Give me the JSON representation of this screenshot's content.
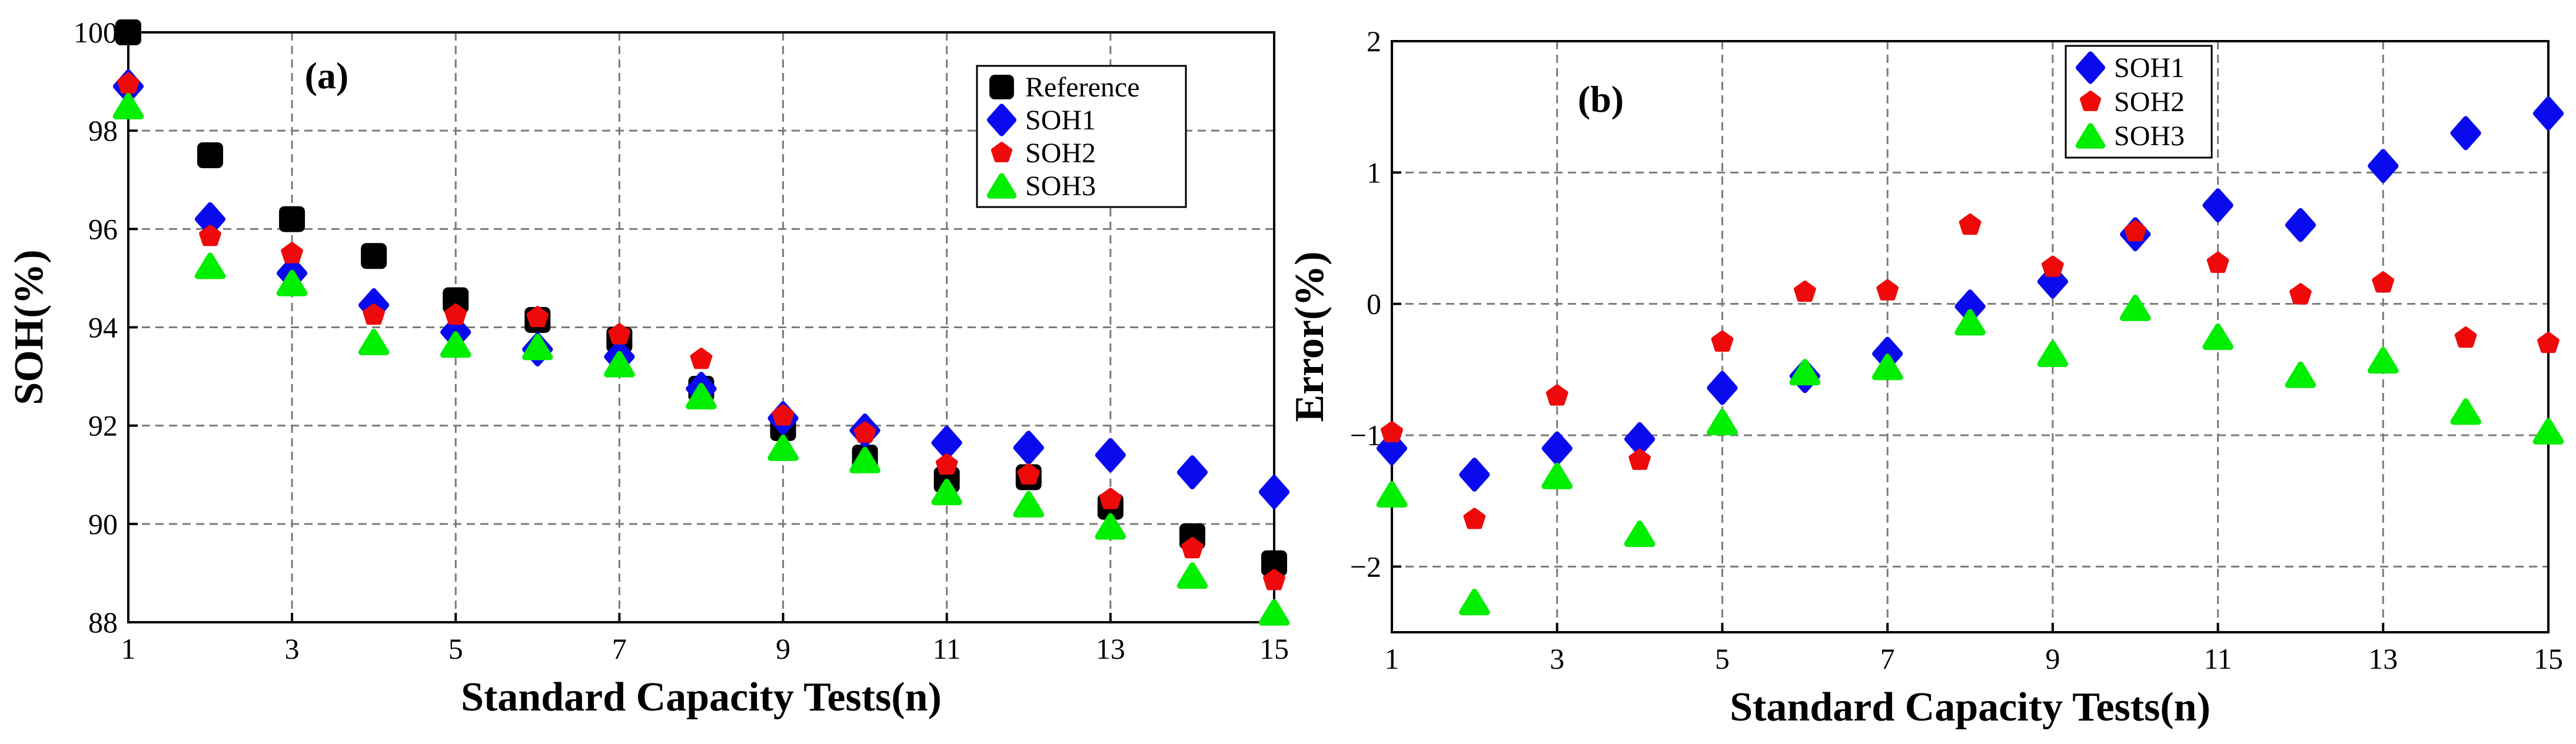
{
  "colors": {
    "Reference": "#000000",
    "SOH1": "#0a0aee",
    "SOH2": "#ee0a0a",
    "SOH3": "#00ee00"
  },
  "markers": {
    "Reference": "square",
    "SOH1": "diamond",
    "SOH2": "pentagon",
    "SOH3": "triangle"
  },
  "chart_data": [
    {
      "type": "scatter",
      "panel_label": "(a)",
      "xlabel": "Standard Capacity Tests(n)",
      "ylabel": "SOH(%)",
      "xlim": [
        1,
        15
      ],
      "ylim": [
        88,
        100
      ],
      "xticks": [
        1,
        3,
        5,
        7,
        9,
        11,
        13,
        15
      ],
      "xtick_labels": [
        "1",
        "3",
        "5",
        "7",
        "9",
        "11",
        "13",
        "15"
      ],
      "yticks": [
        88,
        90,
        92,
        94,
        96,
        98,
        100
      ],
      "ytick_labels": [
        "88",
        "90",
        "92",
        "94",
        "96",
        "98",
        "100"
      ],
      "grid": true,
      "legend_position": "top-right",
      "x": [
        1,
        2,
        3,
        4,
        5,
        6,
        7,
        8,
        9,
        10,
        11,
        12,
        13,
        14,
        15
      ],
      "series": [
        {
          "name": "Reference",
          "values": [
            100.0,
            97.5,
            96.2,
            95.45,
            94.55,
            94.15,
            93.75,
            92.75,
            91.95,
            91.35,
            90.9,
            90.95,
            90.35,
            89.75,
            89.2
          ]
        },
        {
          "name": "SOH1",
          "values": [
            98.9,
            96.2,
            95.1,
            94.45,
            93.9,
            93.55,
            93.4,
            92.75,
            92.15,
            91.9,
            91.65,
            91.55,
            91.4,
            91.05,
            90.65
          ]
        },
        {
          "name": "SOH2",
          "values": [
            98.95,
            95.85,
            95.5,
            94.25,
            94.25,
            94.2,
            93.85,
            93.35,
            92.2,
            91.85,
            91.2,
            91.0,
            90.5,
            89.5,
            88.85
          ]
        },
        {
          "name": "SOH3",
          "values": [
            98.5,
            95.25,
            94.9,
            93.7,
            93.65,
            93.6,
            93.25,
            92.6,
            91.55,
            91.3,
            90.65,
            90.4,
            89.95,
            88.95,
            88.2
          ]
        }
      ]
    },
    {
      "type": "scatter",
      "panel_label": "(b)",
      "xlabel": "Standard Capacity Tests(n)",
      "ylabel": "Error(%)",
      "xlim": [
        1,
        15
      ],
      "ylim": [
        -2.5,
        2
      ],
      "xticks": [
        1,
        3,
        5,
        7,
        9,
        11,
        13,
        15
      ],
      "xtick_labels": [
        "1",
        "3",
        "5",
        "7",
        "9",
        "11",
        "13",
        "15"
      ],
      "yticks": [
        -2,
        -1,
        0,
        1,
        2
      ],
      "ytick_labels": [
        "−2",
        "−1",
        "0",
        "1",
        "2"
      ],
      "grid": true,
      "legend_position": "top-center",
      "x": [
        1,
        2,
        3,
        4,
        5,
        6,
        7,
        8,
        9,
        10,
        11,
        12,
        13,
        14,
        15
      ],
      "series": [
        {
          "name": "SOH1",
          "values": [
            -1.1,
            -1.3,
            -1.1,
            -1.03,
            -0.64,
            -0.55,
            -0.38,
            -0.02,
            0.17,
            0.53,
            0.75,
            0.6,
            1.05,
            1.3,
            1.45
          ]
        },
        {
          "name": "SOH2",
          "values": [
            -0.98,
            -1.64,
            -0.7,
            -1.19,
            -0.29,
            0.09,
            0.1,
            0.6,
            0.28,
            0.55,
            0.31,
            0.07,
            0.16,
            -0.26,
            -0.3
          ]
        },
        {
          "name": "SOH3",
          "values": [
            -1.45,
            -2.27,
            -1.31,
            -1.75,
            -0.9,
            -0.52,
            -0.48,
            -0.14,
            -0.38,
            -0.03,
            -0.25,
            -0.54,
            -0.43,
            -0.82,
            -0.97
          ]
        }
      ]
    }
  ]
}
